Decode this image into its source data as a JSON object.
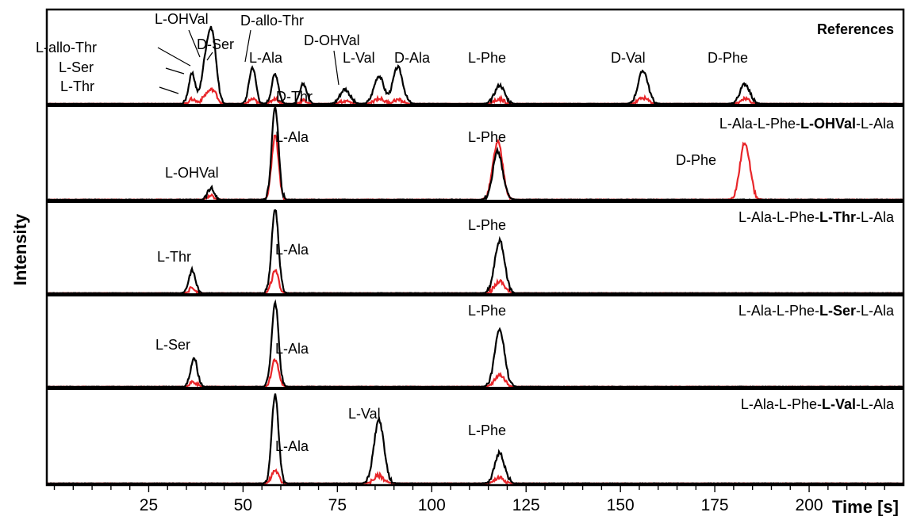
{
  "chart_data": {
    "type": "line",
    "ylabel": "Intensity",
    "xlabel": "Time [s]",
    "xlim": [
      -2,
      225
    ],
    "xticks": [
      25,
      50,
      75,
      100,
      125,
      150,
      175,
      200
    ],
    "minor_tick_step": 5,
    "colors": {
      "black": "#000000",
      "red": "#e8262a"
    },
    "panels": [
      {
        "title_parts": [
          {
            "text": "References",
            "bold": true
          }
        ],
        "peaks": [
          {
            "label": "L-Thr",
            "x": 36.5,
            "black": 0.45,
            "red": 0.07
          },
          {
            "label": "L-Ser",
            "x": 40.5,
            "black": 0.42,
            "red": 0.08
          },
          {
            "label": "L-allo-Thr",
            "x": 39.5,
            "black": 0.3,
            "red": 0.05
          },
          {
            "label": "L-OHVal",
            "x": 41.5,
            "black": 0.62,
            "red": 0.1
          },
          {
            "label": "D-Ser",
            "x": 42.5,
            "black": 0.5,
            "red": 0.12
          },
          {
            "label": "D-allo-Thr",
            "x": 52.5,
            "black": 0.55,
            "red": 0.07
          },
          {
            "label": "L-Ala",
            "x": 58.5,
            "black": 0.45,
            "red": 0.08
          },
          {
            "label": "D-Thr",
            "x": 66,
            "black": 0.3,
            "red": 0.05
          },
          {
            "label": "D-OHVal",
            "x": 77,
            "black": 0.22,
            "red": 0.04
          },
          {
            "label": "L-Val",
            "x": 86,
            "black": 0.42,
            "red": 0.08
          },
          {
            "label": "D-Ala",
            "x": 91,
            "black": 0.55,
            "red": 0.06
          },
          {
            "label": "L-Phe",
            "x": 118,
            "black": 0.28,
            "red": 0.07
          },
          {
            "label": "D-Val",
            "x": 156,
            "black": 0.5,
            "red": 0.09
          },
          {
            "label": "D-Phe",
            "x": 183,
            "black": 0.3,
            "red": 0.07
          }
        ]
      },
      {
        "title_parts": [
          {
            "text": "L-Ala-L-Phe-",
            "bold": false
          },
          {
            "text": "L-OHVal",
            "bold": true
          },
          {
            "text": "-L-Ala",
            "bold": false
          }
        ],
        "peaks": [
          {
            "label": "L-OHVal",
            "x": 41.5,
            "black": 0.12,
            "red": 0.04
          },
          {
            "label": "L-Ala",
            "x": 58.5,
            "black": 1.0,
            "red": 0.7
          },
          {
            "label": "L-Phe",
            "x": 117.5,
            "black": 0.52,
            "red": 0.62
          },
          {
            "label": "D-Phe",
            "x": 183,
            "black": 0.0,
            "red": 0.62
          }
        ]
      },
      {
        "title_parts": [
          {
            "text": "L-Ala-L-Phe-",
            "bold": false
          },
          {
            "text": "L-Thr",
            "bold": true
          },
          {
            "text": "-L-Ala",
            "bold": false
          }
        ],
        "peaks": [
          {
            "label": "L-Thr",
            "x": 36.5,
            "black": 0.27,
            "red": 0.06
          },
          {
            "label": "L-Ala",
            "x": 58.5,
            "black": 1.0,
            "red": 0.26
          },
          {
            "label": "L-Phe",
            "x": 118,
            "black": 0.62,
            "red": 0.14
          }
        ]
      },
      {
        "title_parts": [
          {
            "text": "L-Ala-L-Phe-",
            "bold": false
          },
          {
            "text": "L-Ser",
            "bold": true
          },
          {
            "text": "-L-Ala",
            "bold": false
          }
        ],
        "peaks": [
          {
            "label": "L-Ser",
            "x": 37,
            "black": 0.34,
            "red": 0.06
          },
          {
            "label": "L-Ala",
            "x": 58.5,
            "black": 1.0,
            "red": 0.33
          },
          {
            "label": "L-Phe",
            "x": 118,
            "black": 0.67,
            "red": 0.14
          }
        ]
      },
      {
        "title_parts": [
          {
            "text": "L-Ala-L-Phe-",
            "bold": false
          },
          {
            "text": "L-Val",
            "bold": true
          },
          {
            "text": "-L-Ala",
            "bold": false
          }
        ],
        "peaks": [
          {
            "label": "L-Ala",
            "x": 58.5,
            "black": 1.0,
            "red": 0.15
          },
          {
            "label": "L-Val",
            "x": 86,
            "black": 0.72,
            "red": 0.09
          },
          {
            "label": "L-Phe",
            "x": 118,
            "black": 0.34,
            "red": 0.07
          }
        ]
      }
    ]
  }
}
